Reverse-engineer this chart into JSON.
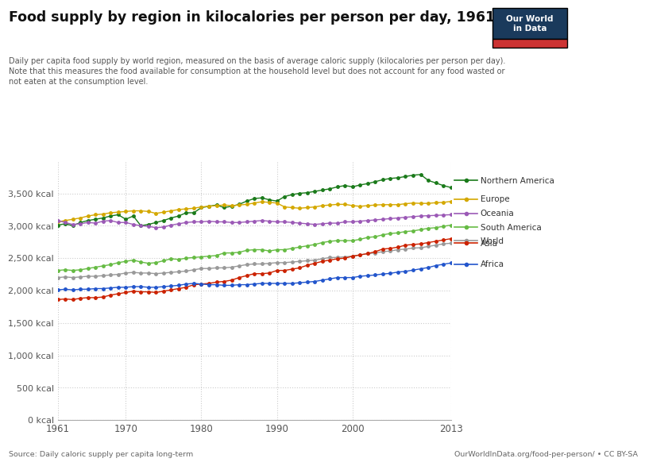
{
  "title": "Food supply by region in kilocalories per person per day, 1961-2013",
  "subtitle": "Daily per capita food supply by world region, measured on the basis of average caloric supply (kilocalories per person per day).\nNote that this measures the food available for consumption at the household level but does not account for any food wasted or\nnot eaten at the consumption level.",
  "source_left": "Source: Daily caloric supply per capita long-term",
  "source_right": "OurWorldInData.org/food-per-person/ • CC BY-SA",
  "years": [
    1961,
    1962,
    1963,
    1964,
    1965,
    1966,
    1967,
    1968,
    1969,
    1970,
    1971,
    1972,
    1973,
    1974,
    1975,
    1976,
    1977,
    1978,
    1979,
    1980,
    1981,
    1982,
    1983,
    1984,
    1985,
    1986,
    1987,
    1988,
    1989,
    1990,
    1991,
    1992,
    1993,
    1994,
    1995,
    1996,
    1997,
    1998,
    1999,
    2000,
    2001,
    2002,
    2003,
    2004,
    2005,
    2006,
    2007,
    2008,
    2009,
    2010,
    2011,
    2012,
    2013
  ],
  "series": {
    "Northern America": [
      3010,
      3030,
      3000,
      3050,
      3080,
      3100,
      3120,
      3150,
      3170,
      3100,
      3150,
      3000,
      3020,
      3050,
      3080,
      3120,
      3150,
      3200,
      3200,
      3280,
      3300,
      3320,
      3280,
      3300,
      3330,
      3380,
      3420,
      3430,
      3400,
      3380,
      3450,
      3480,
      3500,
      3510,
      3530,
      3550,
      3570,
      3600,
      3620,
      3600,
      3630,
      3650,
      3680,
      3710,
      3730,
      3740,
      3760,
      3780,
      3790,
      3700,
      3660,
      3620,
      3590
    ],
    "Europe": [
      3060,
      3080,
      3100,
      3120,
      3150,
      3170,
      3180,
      3200,
      3210,
      3220,
      3230,
      3230,
      3220,
      3190,
      3210,
      3230,
      3250,
      3260,
      3270,
      3290,
      3300,
      3310,
      3320,
      3310,
      3320,
      3330,
      3350,
      3370,
      3360,
      3350,
      3290,
      3280,
      3270,
      3280,
      3290,
      3310,
      3320,
      3330,
      3330,
      3310,
      3300,
      3310,
      3320,
      3325,
      3325,
      3325,
      3340,
      3350,
      3345,
      3345,
      3355,
      3360,
      3375
    ],
    "Oceania": [
      3080,
      3050,
      3020,
      3030,
      3050,
      3040,
      3070,
      3080,
      3050,
      3050,
      3020,
      3000,
      2990,
      2970,
      2980,
      3010,
      3030,
      3050,
      3060,
      3060,
      3070,
      3060,
      3060,
      3050,
      3050,
      3060,
      3070,
      3080,
      3070,
      3060,
      3060,
      3050,
      3040,
      3030,
      3020,
      3030,
      3040,
      3040,
      3060,
      3060,
      3070,
      3080,
      3090,
      3100,
      3110,
      3120,
      3130,
      3140,
      3150,
      3155,
      3160,
      3165,
      3170
    ],
    "South America": [
      2310,
      2320,
      2310,
      2320,
      2340,
      2360,
      2380,
      2400,
      2430,
      2450,
      2470,
      2440,
      2420,
      2430,
      2460,
      2490,
      2480,
      2500,
      2510,
      2520,
      2530,
      2540,
      2580,
      2580,
      2590,
      2620,
      2630,
      2630,
      2610,
      2630,
      2630,
      2650,
      2670,
      2690,
      2710,
      2740,
      2760,
      2770,
      2770,
      2770,
      2790,
      2820,
      2830,
      2860,
      2880,
      2890,
      2910,
      2920,
      2940,
      2960,
      2970,
      2990,
      3010
    ],
    "World": [
      2200,
      2210,
      2200,
      2210,
      2220,
      2220,
      2230,
      2240,
      2250,
      2270,
      2280,
      2270,
      2270,
      2260,
      2270,
      2280,
      2290,
      2300,
      2320,
      2340,
      2340,
      2350,
      2350,
      2360,
      2380,
      2400,
      2410,
      2410,
      2420,
      2430,
      2430,
      2440,
      2450,
      2460,
      2470,
      2490,
      2510,
      2510,
      2520,
      2530,
      2550,
      2570,
      2580,
      2600,
      2610,
      2630,
      2640,
      2655,
      2660,
      2680,
      2700,
      2720,
      2730
    ],
    "Asia": [
      1860,
      1870,
      1860,
      1880,
      1890,
      1890,
      1900,
      1930,
      1950,
      1970,
      1990,
      1980,
      1980,
      1970,
      1990,
      2010,
      2030,
      2050,
      2090,
      2100,
      2110,
      2130,
      2140,
      2160,
      2200,
      2230,
      2260,
      2260,
      2270,
      2310,
      2310,
      2330,
      2350,
      2390,
      2420,
      2450,
      2470,
      2490,
      2500,
      2530,
      2550,
      2570,
      2600,
      2640,
      2650,
      2670,
      2700,
      2710,
      2720,
      2740,
      2760,
      2780,
      2800
    ],
    "Africa": [
      2010,
      2020,
      2010,
      2020,
      2020,
      2030,
      2030,
      2040,
      2050,
      2050,
      2060,
      2060,
      2050,
      2050,
      2060,
      2070,
      2080,
      2100,
      2110,
      2100,
      2090,
      2090,
      2080,
      2080,
      2090,
      2090,
      2100,
      2110,
      2110,
      2110,
      2110,
      2110,
      2120,
      2130,
      2140,
      2160,
      2180,
      2200,
      2200,
      2200,
      2220,
      2230,
      2240,
      2255,
      2265,
      2285,
      2295,
      2315,
      2335,
      2355,
      2385,
      2405,
      2425
    ]
  },
  "colors": {
    "Northern America": "#1a7a1a",
    "Europe": "#d4a800",
    "Oceania": "#9b59b6",
    "South America": "#66bb44",
    "World": "#999999",
    "Asia": "#cc2200",
    "Africa": "#2255cc"
  },
  "ylim": [
    0,
    4000
  ],
  "yticks": [
    0,
    500,
    1000,
    1500,
    2000,
    2500,
    3000,
    3500
  ],
  "ytick_labels": [
    "0 kcal",
    "500 kcal",
    "1,000 kcal",
    "1,500 kcal",
    "2,000 kcal",
    "2,500 kcal",
    "3,000 kcal",
    "3,500 kcal"
  ],
  "xticks": [
    1961,
    1970,
    1980,
    1990,
    2000,
    2013
  ],
  "bg_color": "#ffffff",
  "plot_bg_color": "#ffffff",
  "grid_color": "#cccccc",
  "grid_style": "dotted",
  "owid_box_bg": "#1a3a5c",
  "owid_box_red": "#cc3333",
  "legend_labels": [
    "Northern America",
    "Europe",
    "Oceania",
    "South America",
    "World",
    "Asia",
    "Africa"
  ]
}
